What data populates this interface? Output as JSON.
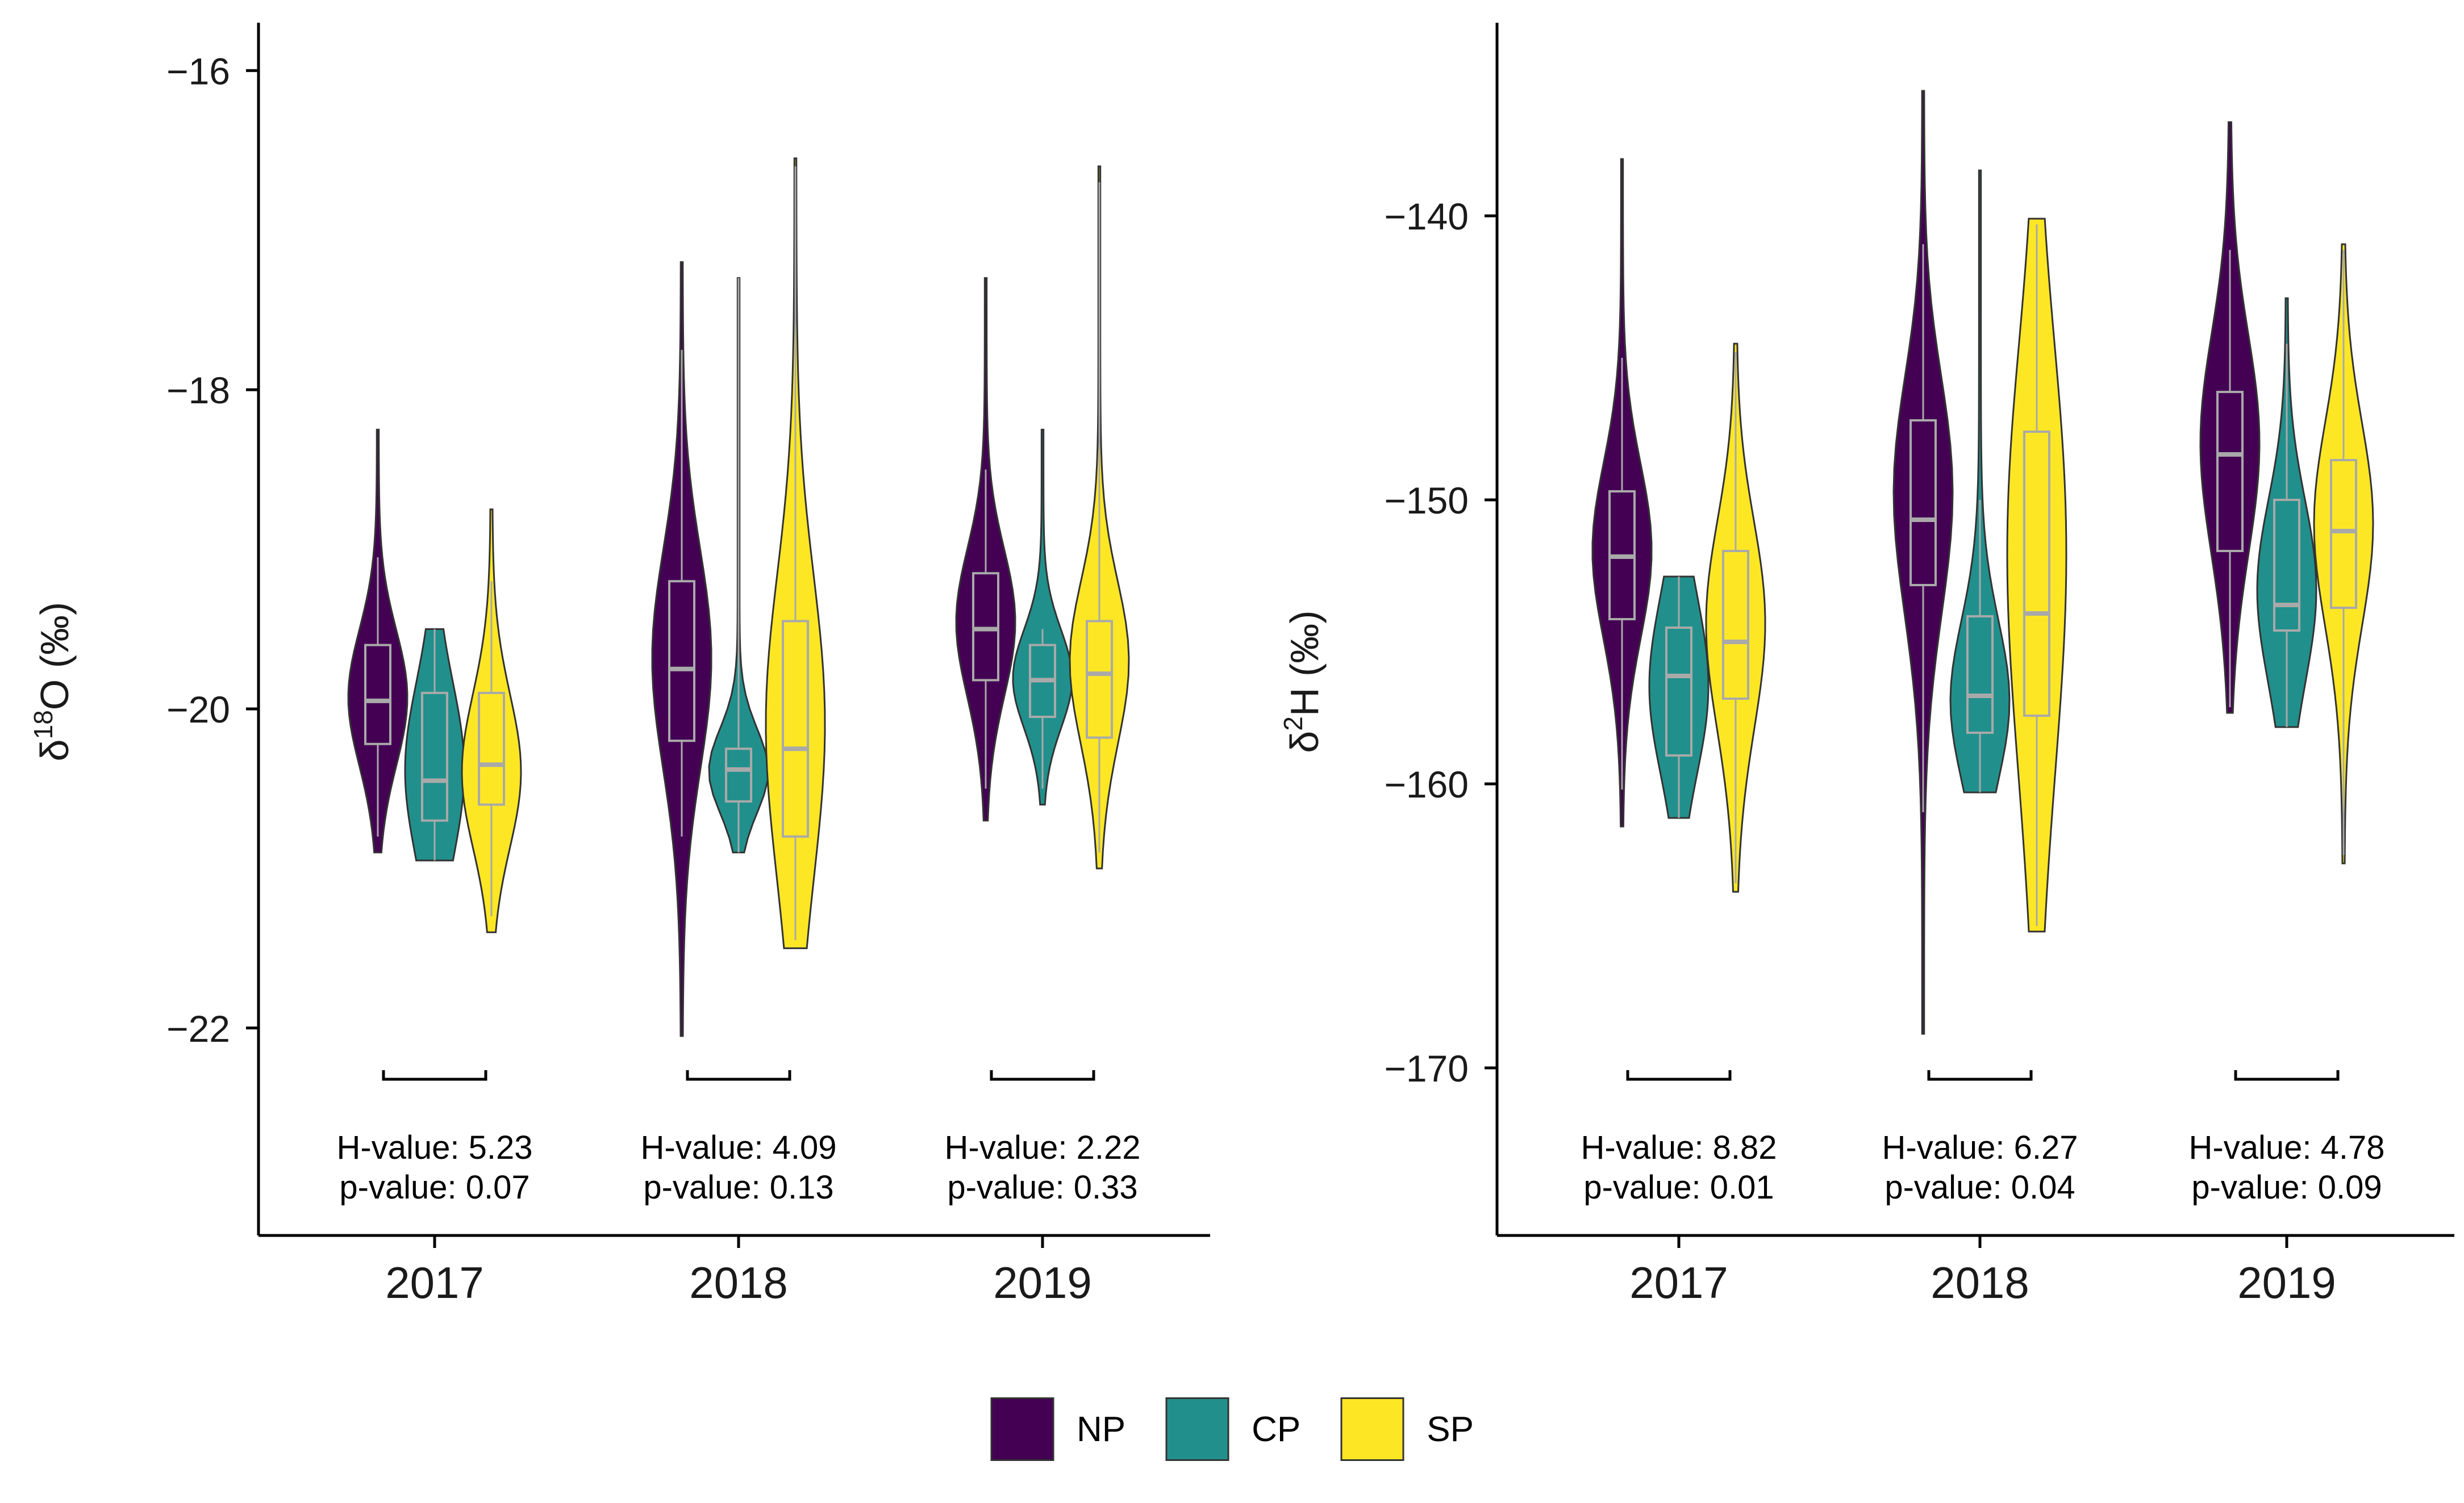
{
  "chart_data": [
    {
      "type": "violin",
      "ylabel_prefix": "δ",
      "ylabel_sup": "18",
      "ylabel_suffix": "O (‰)",
      "xlabel": "",
      "categories": [
        "2017",
        "2018",
        "2019"
      ],
      "ylim": [
        -23.3,
        -15.7
      ],
      "y_ticks": [
        -16,
        -18,
        -20,
        -22
      ],
      "y_tick_labels": [
        "−16",
        "−18",
        "−20",
        "−22"
      ],
      "series": [
        {
          "name": "NP",
          "color": "#440154",
          "values": [
            {
              "min": -20.9,
              "q1": -20.22,
              "median": -19.95,
              "q3": -19.6,
              "max": -18.25,
              "whisker_low": -20.8,
              "whisker_high": -19.05,
              "mode": -19.9
            },
            {
              "min": -22.05,
              "q1": -20.2,
              "median": -19.75,
              "q3": -19.2,
              "max": -17.2,
              "whisker_low": -20.8,
              "whisker_high": -17.75,
              "mode": -19.6
            },
            {
              "min": -20.7,
              "q1": -19.82,
              "median": -19.5,
              "q3": -19.15,
              "max": -17.3,
              "whisker_low": -20.5,
              "whisker_high": -18.5,
              "mode": -19.4
            }
          ]
        },
        {
          "name": "CP",
          "color": "#21908C",
          "values": [
            {
              "min": -20.95,
              "q1": -20.7,
              "median": -20.45,
              "q3": -19.9,
              "max": -19.5,
              "whisker_low": -20.95,
              "whisker_high": -19.5,
              "mode": -20.3
            },
            {
              "min": -20.9,
              "q1": -20.58,
              "median": -20.38,
              "q3": -20.25,
              "max": -17.3,
              "whisker_low": -20.9,
              "whisker_high": -17.3,
              "mode": -20.4
            },
            {
              "min": -20.6,
              "q1": -20.05,
              "median": -19.82,
              "q3": -19.6,
              "max": -18.25,
              "whisker_low": -20.5,
              "whisker_high": -19.5,
              "mode": -19.8
            }
          ]
        },
        {
          "name": "SP",
          "color": "#FDE725",
          "values": [
            {
              "min": -21.4,
              "q1": -20.6,
              "median": -20.35,
              "q3": -19.9,
              "max": -18.75,
              "whisker_low": -21.3,
              "whisker_high": -19.2,
              "mode": -20.45
            },
            {
              "min": -21.5,
              "q1": -20.8,
              "median": -20.25,
              "q3": -19.45,
              "max": -16.55,
              "whisker_low": -21.45,
              "whisker_high": -16.6,
              "mode": -19.9
            },
            {
              "min": -21.0,
              "q1": -20.18,
              "median": -19.78,
              "q3": -19.45,
              "max": -16.6,
              "whisker_low": -20.9,
              "whisker_high": -16.7,
              "mode": -19.6
            }
          ]
        }
      ],
      "annotations": [
        {
          "category": "2017",
          "h_text": "H-value: 5.23",
          "p_text": "p-value: 0.07"
        },
        {
          "category": "2018",
          "h_text": "H-value: 4.09",
          "p_text": "p-value: 0.13"
        },
        {
          "category": "2019",
          "h_text": "H-value: 2.22",
          "p_text": "p-value: 0.33"
        }
      ],
      "grid": false
    },
    {
      "type": "violin",
      "ylabel_prefix": "δ",
      "ylabel_sup": "2",
      "ylabel_suffix": "H (‰)",
      "xlabel": "",
      "categories": [
        "2017",
        "2018",
        "2019"
      ],
      "ylim": [
        -175.9,
        -133.2
      ],
      "y_ticks": [
        -140,
        -150,
        -160,
        -170
      ],
      "y_tick_labels": [
        "−140",
        "−150",
        "−160",
        "−170"
      ],
      "series": [
        {
          "name": "NP",
          "color": "#440154",
          "values": [
            {
              "min": -161.5,
              "q1": -154.2,
              "median": -152.0,
              "q3": -149.7,
              "max": -138.0,
              "whisker_low": -160.2,
              "whisker_high": -145.0,
              "mode": -151.5
            },
            {
              "min": -168.8,
              "q1": -153.0,
              "median": -150.7,
              "q3": -147.2,
              "max": -135.6,
              "whisker_low": -161.0,
              "whisker_high": -141.0,
              "mode": -148.5
            },
            {
              "min": -157.5,
              "q1": -151.8,
              "median": -148.4,
              "q3": -146.2,
              "max": -136.7,
              "whisker_low": -157.3,
              "whisker_high": -141.2,
              "mode": -147.5
            }
          ]
        },
        {
          "name": "CP",
          "color": "#21908C",
          "values": [
            {
              "min": -161.2,
              "q1": -159.0,
              "median": -156.2,
              "q3": -154.5,
              "max": -152.7,
              "whisker_low": -161.2,
              "whisker_high": -152.7,
              "mode": -157.0
            },
            {
              "min": -160.3,
              "q1": -158.2,
              "median": -156.9,
              "q3": -154.1,
              "max": -138.4,
              "whisker_low": -160.3,
              "whisker_high": -150.0,
              "mode": -157.3
            },
            {
              "min": -158.0,
              "q1": -154.6,
              "median": -153.7,
              "q3": -150.0,
              "max": -142.9,
              "whisker_low": -158.0,
              "whisker_high": -144.5,
              "mode": -152.5
            }
          ]
        },
        {
          "name": "SP",
          "color": "#FDE725",
          "values": [
            {
              "min": -163.8,
              "q1": -157.0,
              "median": -155.0,
              "q3": -151.8,
              "max": -144.5,
              "whisker_low": -163.5,
              "whisker_high": -144.8,
              "mode": -153.5
            },
            {
              "min": -165.2,
              "q1": -157.6,
              "median": -154.0,
              "q3": -147.6,
              "max": -140.1,
              "whisker_low": -165.0,
              "whisker_high": -140.3,
              "mode": -149.0
            },
            {
              "min": -162.8,
              "q1": -153.8,
              "median": -151.1,
              "q3": -148.6,
              "max": -141.0,
              "whisker_low": -162.5,
              "whisker_high": -141.2,
              "mode": -150.5
            }
          ]
        }
      ],
      "annotations": [
        {
          "category": "2017",
          "h_text": "H-value: 8.82",
          "p_text": "p-value: 0.01"
        },
        {
          "category": "2018",
          "h_text": "H-value: 6.27",
          "p_text": "p-value: 0.04"
        },
        {
          "category": "2019",
          "h_text": "H-value: 4.78",
          "p_text": "p-value: 0.09"
        }
      ],
      "grid": false
    }
  ],
  "legend": {
    "position": "bottom-center",
    "items": [
      {
        "label": "NP",
        "color": "#440154"
      },
      {
        "label": "CP",
        "color": "#21908C"
      },
      {
        "label": "SP",
        "color": "#FDE725"
      }
    ]
  }
}
